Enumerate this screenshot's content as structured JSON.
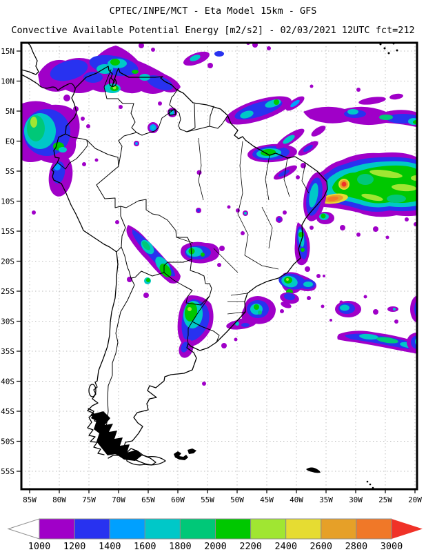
{
  "title": {
    "line1": "CPTEC/INPE/MCT -  Eta Model 15km - GFS",
    "line2": "Convective Available Potential Energy [m2/s2] - 02/03/2021 12UTC fct=212"
  },
  "map": {
    "lat_labels": [
      "15N",
      "10N",
      "5N",
      "EQ",
      "5S",
      "10S",
      "15S",
      "20S",
      "25S",
      "30S",
      "35S",
      "40S",
      "45S",
      "50S",
      "55S"
    ],
    "lon_labels": [
      "85W",
      "80W",
      "75W",
      "70W",
      "65W",
      "60W",
      "55W",
      "50W",
      "45W",
      "40W",
      "35W",
      "30W",
      "25W",
      "20W"
    ],
    "grid_color": "#bdbdbd",
    "coast_color": "#000000"
  },
  "colorbar": {
    "values": [
      "1000",
      "1200",
      "1400",
      "1600",
      "1800",
      "2000",
      "2200",
      "2400",
      "2600",
      "2800",
      "3000"
    ],
    "colors": [
      "#A000C8",
      "#2832F0",
      "#00A0FF",
      "#00C8C8",
      "#00C878",
      "#00C800",
      "#A0E632",
      "#E6DC32",
      "#E6A028",
      "#F07828"
    ],
    "left_arrow_color": "#FFFFFF",
    "right_arrow_color": "#F03228",
    "outline_color": "#8c8c8c"
  }
}
